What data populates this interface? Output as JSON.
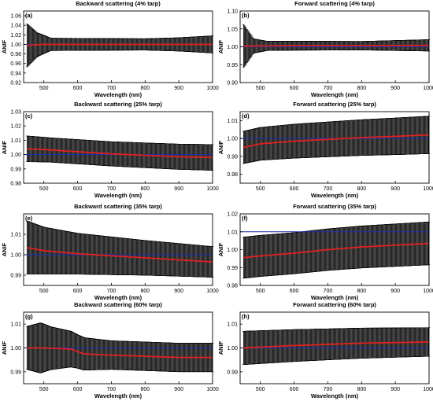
{
  "figure": {
    "colors": {
      "errorbar": "#000000",
      "mean": "#e02020",
      "reference": "#1a2fb0"
    }
  },
  "chart_data": [
    {
      "panel": "(a)",
      "title": "Backward scattering (4% tarp)",
      "type": "line",
      "xlabel": "Wavelength (nm)",
      "ylabel": "ANIF",
      "xlim": [
        440,
        1000
      ],
      "ylim": [
        0.92,
        1.07
      ],
      "xticks": [
        500,
        600,
        700,
        800,
        900,
        1000
      ],
      "yticks": [
        0.92,
        0.94,
        0.96,
        0.98,
        1.0,
        1.02,
        1.04,
        1.06
      ],
      "reference": 1.0,
      "mean_curve": [
        [
          450,
          0.998
        ],
        [
          500,
          1.0
        ],
        [
          700,
          1.0
        ],
        [
          1000,
          1.0
        ]
      ],
      "error_halfwidth": [
        [
          450,
          0.045
        ],
        [
          480,
          0.025
        ],
        [
          520,
          0.013
        ],
        [
          800,
          0.012
        ],
        [
          900,
          0.014
        ],
        [
          1000,
          0.018
        ]
      ]
    },
    {
      "panel": "(b)",
      "title": "Forward scattering (4% tarp)",
      "type": "line",
      "xlabel": "Wavelength (nm)",
      "ylabel": "ANIF",
      "xlim": [
        440,
        1000
      ],
      "ylim": [
        0.9,
        1.1
      ],
      "xticks": [
        500,
        600,
        700,
        800,
        900,
        1000
      ],
      "yticks": [
        0.9,
        0.95,
        1.0,
        1.05,
        1.1
      ],
      "reference": 1.0,
      "mean_curve": [
        [
          450,
          1.002
        ],
        [
          600,
          1.003
        ],
        [
          800,
          1.003
        ],
        [
          1000,
          1.004
        ]
      ],
      "error_halfwidth": [
        [
          450,
          0.06
        ],
        [
          480,
          0.02
        ],
        [
          520,
          0.013
        ],
        [
          800,
          0.012
        ],
        [
          1000,
          0.016
        ]
      ]
    },
    {
      "panel": "(c)",
      "title": "Backward scattering (25% tarp)",
      "type": "line",
      "xlabel": "Wavelength (nm)",
      "ylabel": "ANIF",
      "xlim": [
        440,
        1000
      ],
      "ylim": [
        0.98,
        1.03
      ],
      "xticks": [
        500,
        600,
        700,
        800,
        900,
        1000
      ],
      "yticks": [
        0.98,
        0.99,
        1.0,
        1.01,
        1.02,
        1.03
      ],
      "reference": 1.0,
      "mean_curve": [
        [
          450,
          1.004
        ],
        [
          500,
          1.0035
        ],
        [
          600,
          1.002
        ],
        [
          700,
          1.0005
        ],
        [
          800,
          0.9995
        ],
        [
          900,
          0.9985
        ],
        [
          1000,
          0.998
        ]
      ],
      "error_halfwidth": [
        [
          450,
          0.009
        ],
        [
          520,
          0.0085
        ],
        [
          700,
          0.0085
        ],
        [
          1000,
          0.009
        ]
      ]
    },
    {
      "panel": "(d)",
      "title": "Forward scattering (25% tarp)",
      "type": "line",
      "xlabel": "Wavelength (nm)",
      "ylabel": "ANIF",
      "xlim": [
        440,
        1000
      ],
      "ylim": [
        0.975,
        1.015
      ],
      "xticks": [
        500,
        600,
        700,
        800,
        900,
        1000
      ],
      "yticks": [
        0.98,
        0.99,
        1.0,
        1.01
      ],
      "reference": 1.0,
      "mean_curve": [
        [
          450,
          0.995
        ],
        [
          500,
          0.997
        ],
        [
          600,
          0.9985
        ],
        [
          700,
          0.9995
        ],
        [
          800,
          1.0005
        ],
        [
          900,
          1.0012
        ],
        [
          1000,
          1.002
        ]
      ],
      "error_halfwidth": [
        [
          450,
          0.009
        ],
        [
          600,
          0.0095
        ],
        [
          1000,
          0.0105
        ]
      ]
    },
    {
      "panel": "(e)",
      "title": "Backward scattering (35% tarp)",
      "type": "line",
      "xlabel": "Wavelength (nm)",
      "ylabel": "ANIF",
      "xlim": [
        440,
        1000
      ],
      "ylim": [
        0.985,
        1.02
      ],
      "xticks": [
        500,
        600,
        700,
        800,
        900,
        1000
      ],
      "yticks": [
        0.99,
        1.0,
        1.01
      ],
      "reference": 1.0,
      "mean_curve": [
        [
          450,
          1.0035
        ],
        [
          500,
          1.002
        ],
        [
          600,
          1.0005
        ],
        [
          700,
          0.9995
        ],
        [
          800,
          0.9985
        ],
        [
          900,
          0.9975
        ],
        [
          1000,
          0.9965
        ]
      ],
      "error_halfwidth": [
        [
          450,
          0.013
        ],
        [
          500,
          0.0115
        ],
        [
          600,
          0.01
        ],
        [
          800,
          0.0085
        ],
        [
          1000,
          0.0075
        ]
      ]
    },
    {
      "panel": "(f)",
      "title": "Forward scattering (35% tarp)",
      "type": "line",
      "xlabel": "Wavelength (nm)",
      "ylabel": "ANIF",
      "xlim": [
        440,
        1000
      ],
      "ylim": [
        0.98,
        1.02
      ],
      "xticks": [
        500,
        600,
        700,
        800,
        900,
        1000
      ],
      "yticks": [
        0.98,
        0.99,
        1.0,
        1.01,
        1.02
      ],
      "ytick_labels": [
        "0.98",
        "0.99",
        "1.00",
        "1.01",
        "1.02"
      ],
      "reference": 1.01,
      "mean_curve": [
        [
          450,
          0.9955
        ],
        [
          500,
          0.9965
        ],
        [
          600,
          0.998
        ],
        [
          700,
          1.0
        ],
        [
          800,
          1.0015
        ],
        [
          900,
          1.0025
        ],
        [
          1000,
          1.0035
        ]
      ],
      "error_halfwidth": [
        [
          450,
          0.0115
        ],
        [
          600,
          0.0115
        ],
        [
          1000,
          0.012
        ]
      ]
    },
    {
      "panel": "(g)",
      "title": "Backward scattering (60% tarp)",
      "type": "line",
      "xlabel": "Wavelength (nm)",
      "ylabel": "ANIF",
      "xlim": [
        440,
        1000
      ],
      "ylim": [
        0.985,
        1.015
      ],
      "xticks": [
        500,
        600,
        700,
        800,
        900,
        1000
      ],
      "yticks": [
        0.99,
        1.0,
        1.01
      ],
      "reference": 1.0,
      "mean_curve": [
        [
          450,
          1.0
        ],
        [
          500,
          1.0
        ],
        [
          580,
          0.9995
        ],
        [
          620,
          0.9975
        ],
        [
          700,
          0.997
        ],
        [
          800,
          0.9965
        ],
        [
          900,
          0.996
        ],
        [
          1000,
          0.996
        ]
      ],
      "error_halfwidth": [
        [
          450,
          0.009
        ],
        [
          490,
          0.0105
        ],
        [
          520,
          0.009
        ],
        [
          600,
          0.007
        ],
        [
          700,
          0.006
        ],
        [
          1000,
          0.006
        ]
      ]
    },
    {
      "panel": "(h)",
      "title": "Forward scattering (60% tarp)",
      "type": "line",
      "xlabel": "Wavelength (nm)",
      "ylabel": "ANIF",
      "xlim": [
        440,
        1000
      ],
      "ylim": [
        0.985,
        1.015
      ],
      "xticks": [
        500,
        600,
        700,
        800,
        900,
        1000
      ],
      "yticks": [
        0.99,
        1.0,
        1.01
      ],
      "ytick_labels": [
        "0.99",
        "1.00",
        "1.01"
      ],
      "reference": 1.0,
      "mean_curve": [
        [
          450,
          1.0
        ],
        [
          600,
          1.001
        ],
        [
          800,
          1.002
        ],
        [
          1000,
          1.0025
        ]
      ],
      "error_halfwidth": [
        [
          450,
          0.007
        ],
        [
          700,
          0.0065
        ],
        [
          1000,
          0.006
        ]
      ]
    }
  ]
}
